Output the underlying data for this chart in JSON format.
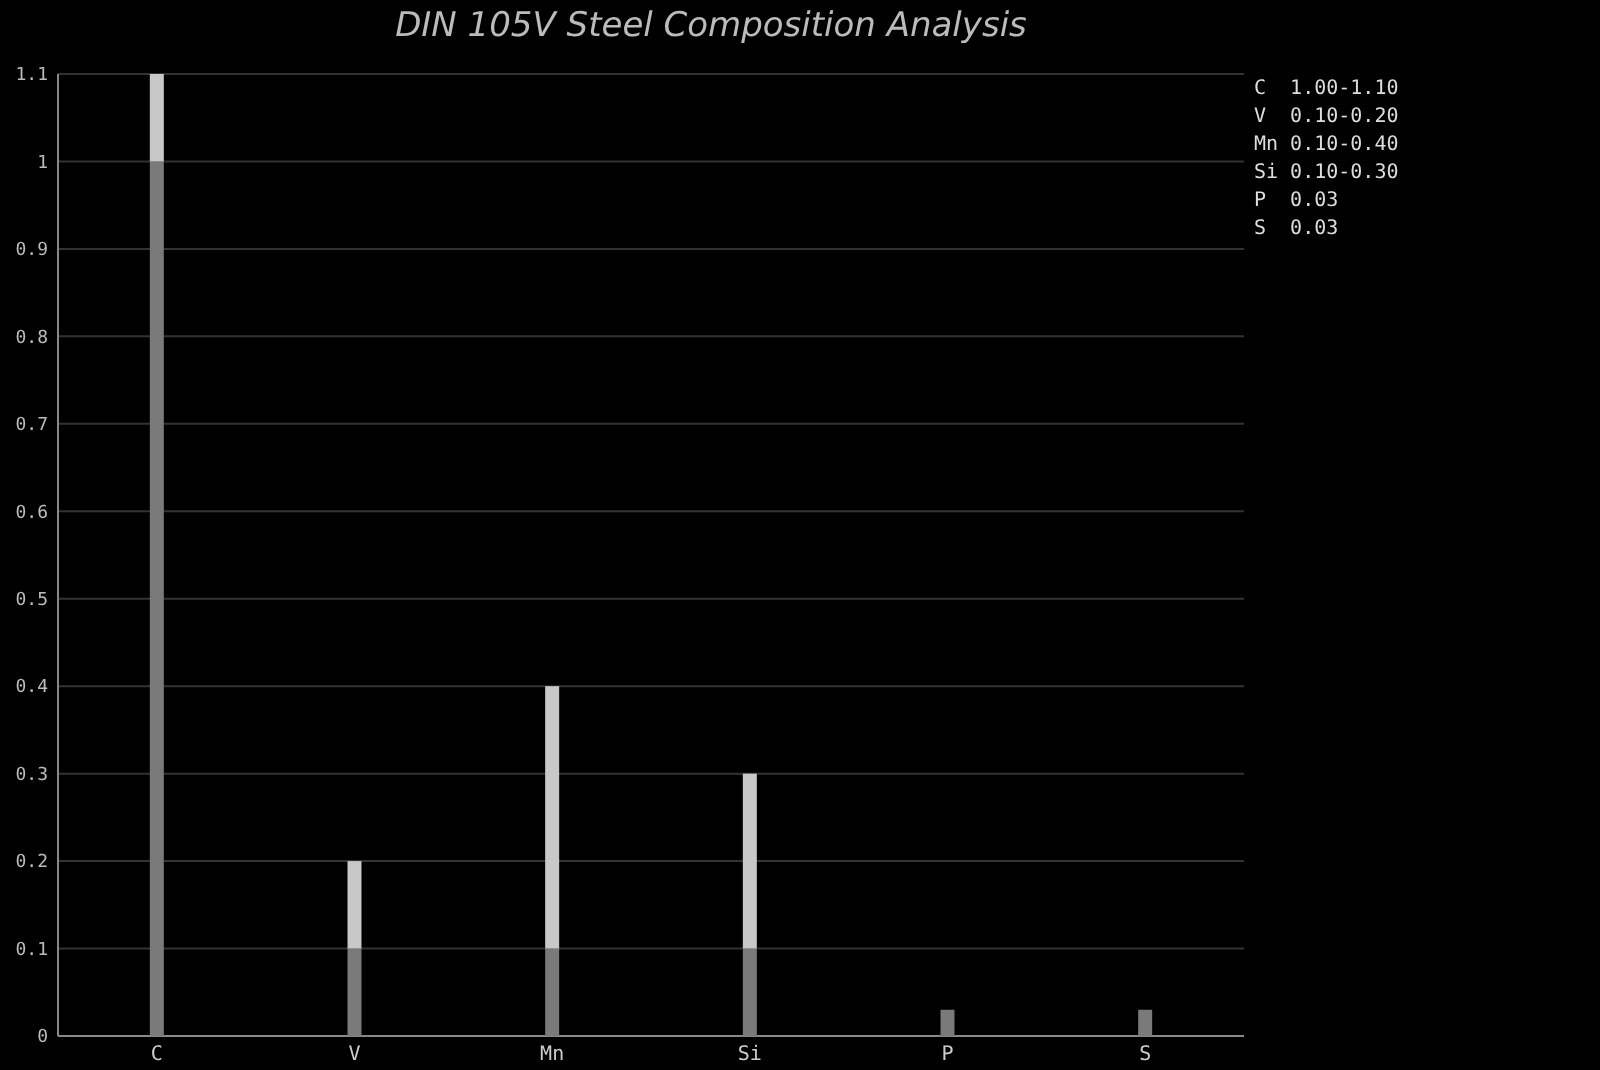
{
  "chart_data": {
    "type": "bar",
    "title": "DIN 105V Steel Composition Analysis",
    "categories": [
      "C",
      "V",
      "Mn",
      "Si",
      "P",
      "S"
    ],
    "stacked": true,
    "series": [
      {
        "color": "#7a7a7a",
        "values": [
          1.0,
          0.1,
          0.1,
          0.1,
          0.03,
          0.03
        ]
      },
      {
        "color": "#c8c8c8",
        "values": [
          0.1,
          0.1,
          0.3,
          0.2,
          null,
          null
        ]
      }
    ],
    "ylim": [
      0,
      1.1
    ],
    "yticks": [
      0,
      0.1,
      0.2,
      0.3,
      0.4,
      0.5,
      0.6,
      0.7,
      0.8,
      0.9,
      1,
      1.1
    ],
    "grid": "y",
    "annotations": [
      "C  1.00-1.10",
      "V  0.10-0.20",
      "Mn 0.10-0.40",
      "Si 0.10-0.30",
      "P  0.03",
      "S  0.03"
    ]
  }
}
